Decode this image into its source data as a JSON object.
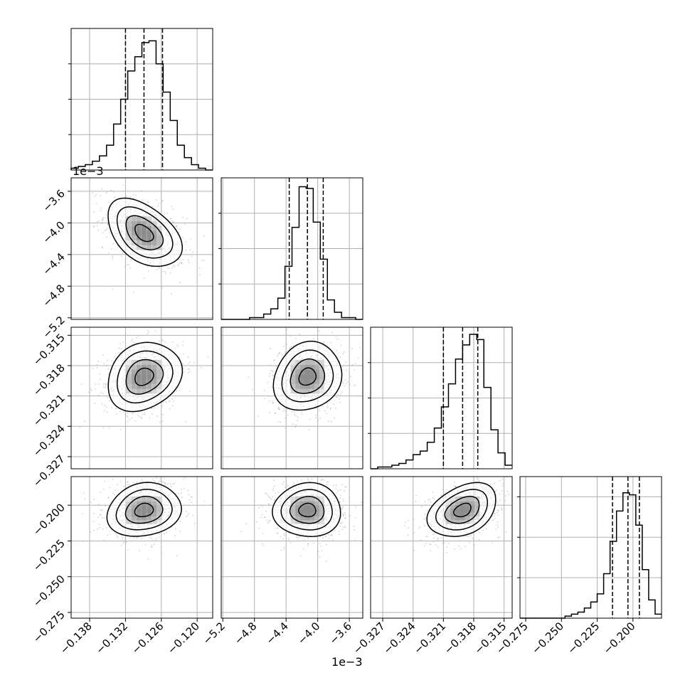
{
  "chart_data": {
    "type": "corner",
    "parameters": [
      {
        "ticks": [
          -0.138,
          -0.132,
          -0.126,
          -0.12
        ],
        "tick_labels": [
          "−0.138",
          "−0.132",
          "−0.126",
          "−0.120"
        ],
        "range": [
          -0.1411,
          -0.1174
        ],
        "quantiles": [
          -0.132,
          -0.1289,
          -0.1258
        ],
        "offset_label": ""
      },
      {
        "ticks": [
          -5.2,
          -4.8,
          -4.4,
          -4.0,
          -3.6
        ],
        "tick_labels": [
          "−5.2",
          "−4.8",
          "−4.4",
          "−4.0",
          "−3.6"
        ],
        "range": [
          -5.22,
          -3.43
        ],
        "quantiles": [
          -4.36,
          -4.13,
          -3.93
        ],
        "offset_label": "1e−3"
      },
      {
        "ticks": [
          -0.327,
          -0.324,
          -0.321,
          -0.318,
          -0.315
        ],
        "tick_labels": [
          "−0.327",
          "−0.324",
          "−0.321",
          "−0.318",
          "−0.315"
        ],
        "range": [
          -0.3282,
          -0.3142
        ],
        "quantiles": [
          -0.321,
          -0.3191,
          -0.3176
        ],
        "offset_label": ""
      },
      {
        "ticks": [
          -0.275,
          -0.25,
          -0.225,
          -0.2
        ],
        "tick_labels": [
          "−0.275",
          "−0.250",
          "−0.225",
          "−0.200"
        ],
        "range": [
          -0.279,
          -0.18
        ],
        "quantiles": [
          -0.2143,
          -0.2035,
          -0.1955
        ],
        "offset_label": ""
      }
    ],
    "histograms": [
      [
        1,
        2,
        3,
        5,
        8,
        14,
        26,
        40,
        56,
        64,
        72,
        73,
        60,
        44,
        28,
        14,
        7,
        3,
        1,
        0
      ],
      [
        0,
        0,
        0,
        0,
        1,
        1,
        3,
        6,
        12,
        30,
        52,
        75,
        74,
        55,
        34,
        11,
        4,
        1,
        1,
        0
      ],
      [
        0,
        1,
        1,
        2,
        3,
        5,
        8,
        10,
        15,
        23,
        35,
        48,
        62,
        70,
        76,
        73,
        46,
        22,
        9,
        2
      ],
      [
        0,
        0,
        0,
        0,
        0,
        0,
        0,
        1,
        2,
        3,
        5,
        8,
        12,
        22,
        38,
        53,
        62,
        61,
        46,
        24,
        9,
        2
      ]
    ],
    "hist_ylim": [
      80,
      80,
      80,
      70
    ],
    "correlations": {
      "1-0": -0.45,
      "2-0": 0.2,
      "2-1": 0.15,
      "3-0": 0.15,
      "3-1": 0.0,
      "3-2": 0.35
    },
    "contour_levels_sigma": [
      0.5,
      1.0,
      1.5,
      2.0
    ],
    "grid": true,
    "colors": {
      "points": "#7f7f7f",
      "contour": "#000000",
      "hist": "#000000",
      "grid": "#b0b0b0",
      "density_dark": "#000000"
    }
  }
}
